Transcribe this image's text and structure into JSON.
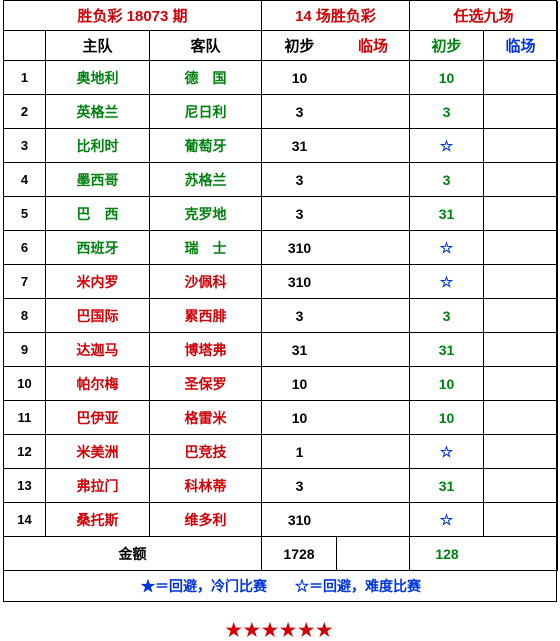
{
  "header1": {
    "col1": "胜负彩 18073 期",
    "col2": "14 场胜负彩",
    "col3": "任选九场"
  },
  "header2": {
    "idx": "",
    "home": "主队",
    "away": "客队",
    "chubu1": "初步",
    "linchang1": "临场",
    "chubu2": "初步",
    "linchang2": "临场"
  },
  "rows": [
    {
      "n": "1",
      "home": "奥地利",
      "away": "德　国",
      "homeColor": "green",
      "v1": "10",
      "v2": "",
      "v3": "10",
      "v3Type": "num",
      "v4": ""
    },
    {
      "n": "2",
      "home": "英格兰",
      "away": "尼日利",
      "homeColor": "green",
      "v1": "3",
      "v2": "",
      "v3": "3",
      "v3Type": "num",
      "v4": ""
    },
    {
      "n": "3",
      "home": "比利时",
      "away": "葡萄牙",
      "homeColor": "green",
      "v1": "31",
      "v2": "",
      "v3": "☆",
      "v3Type": "star",
      "v4": ""
    },
    {
      "n": "4",
      "home": "墨西哥",
      "away": "苏格兰",
      "homeColor": "green",
      "v1": "3",
      "v2": "",
      "v3": "3",
      "v3Type": "num",
      "v4": ""
    },
    {
      "n": "5",
      "home": "巴　西",
      "away": "克罗地",
      "homeColor": "green",
      "v1": "3",
      "v2": "",
      "v3": "31",
      "v3Type": "num",
      "v4": ""
    },
    {
      "n": "6",
      "home": "西班牙",
      "away": "瑞　士",
      "homeColor": "green",
      "v1": "310",
      "v2": "",
      "v3": "☆",
      "v3Type": "star",
      "v4": ""
    },
    {
      "n": "7",
      "home": "米内罗",
      "away": "沙佩科",
      "homeColor": "red",
      "v1": "310",
      "v2": "",
      "v3": "☆",
      "v3Type": "star",
      "v4": ""
    },
    {
      "n": "8",
      "home": "巴国际",
      "away": "累西腓",
      "homeColor": "red",
      "v1": "3",
      "v2": "",
      "v3": "3",
      "v3Type": "num",
      "v4": ""
    },
    {
      "n": "9",
      "home": "达迦马",
      "away": "博塔弗",
      "homeColor": "red",
      "v1": "31",
      "v2": "",
      "v3": "31",
      "v3Type": "num",
      "v4": ""
    },
    {
      "n": "10",
      "home": "帕尔梅",
      "away": "圣保罗",
      "homeColor": "red",
      "v1": "10",
      "v2": "",
      "v3": "10",
      "v3Type": "num",
      "v4": ""
    },
    {
      "n": "11",
      "home": "巴伊亚",
      "away": "格雷米",
      "homeColor": "red",
      "v1": "10",
      "v2": "",
      "v3": "10",
      "v3Type": "num",
      "v4": ""
    },
    {
      "n": "12",
      "home": "米美洲",
      "away": "巴竞技",
      "homeColor": "red",
      "v1": "1",
      "v2": "",
      "v3": "☆",
      "v3Type": "star",
      "v4": ""
    },
    {
      "n": "13",
      "home": "弗拉门",
      "away": "科林蒂",
      "homeColor": "red",
      "v1": "3",
      "v2": "",
      "v3": "31",
      "v3Type": "num",
      "v4": ""
    },
    {
      "n": "14",
      "home": "桑托斯",
      "away": "维多利",
      "homeColor": "red",
      "v1": "310",
      "v2": "",
      "v3": "☆",
      "v3Type": "star",
      "v4": ""
    }
  ],
  "footer": {
    "label": "金额",
    "v1": "1728",
    "v2": "",
    "v3": "128",
    "v4": ""
  },
  "legend": "★＝回避，冷门比赛　　☆＝回避，难度比赛",
  "bottomStars": "★★★★★★",
  "colors": {
    "red": "#d00006",
    "green": "#008110",
    "blue": "#0033dd",
    "black": "#000000"
  }
}
